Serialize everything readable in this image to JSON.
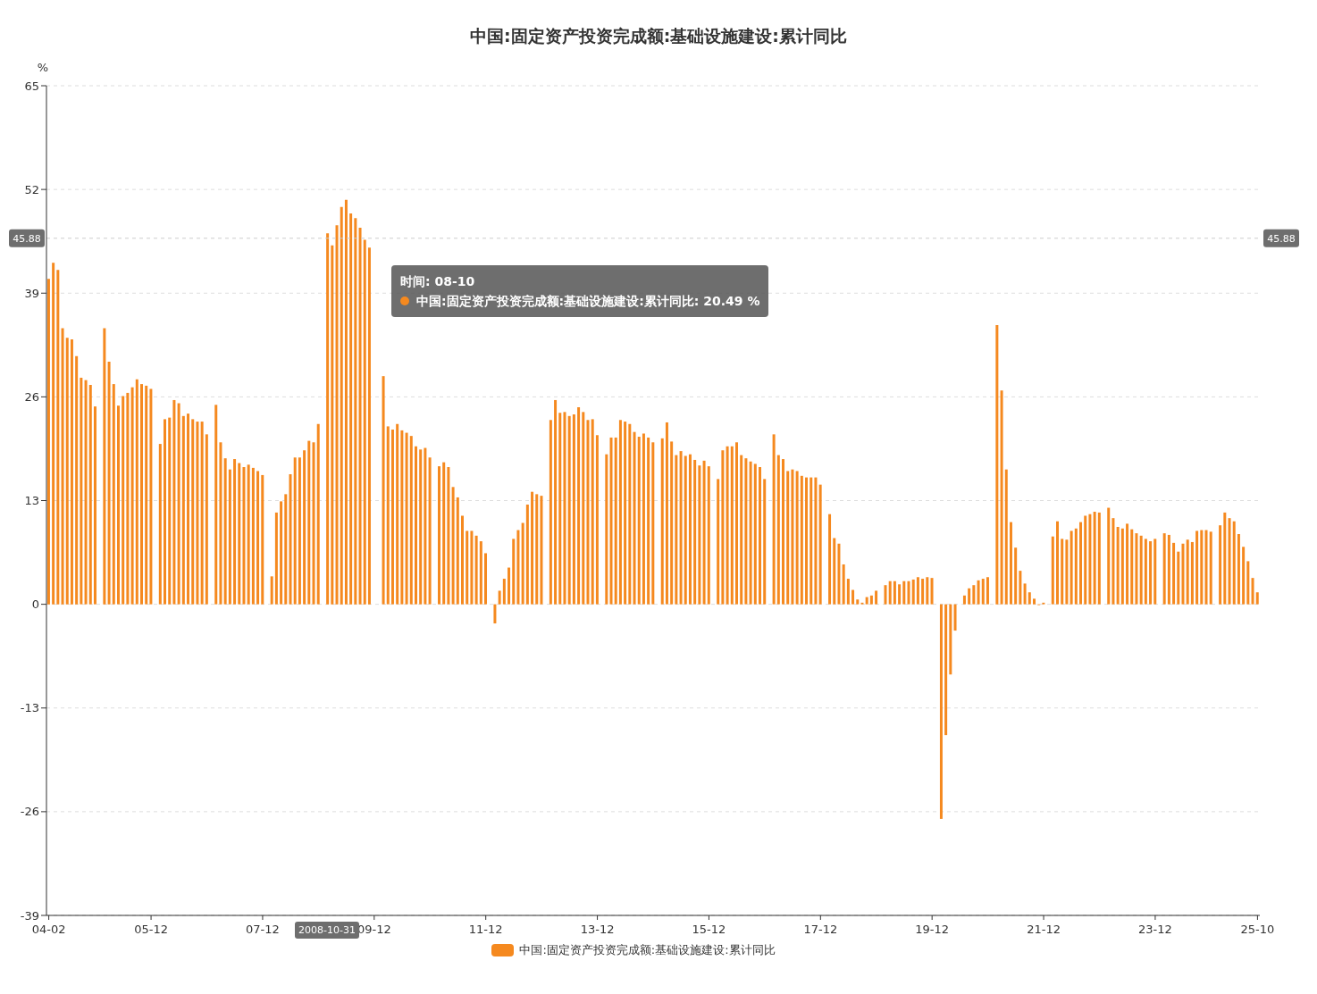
{
  "chart_data": {
    "type": "bar",
    "title": "中国:固定资产投资完成额:基础设施建设:累计同比",
    "ylabel": "%",
    "categories": [
      "04-02",
      null,
      null,
      null,
      null,
      null,
      null,
      null,
      null,
      null,
      null,
      null,
      null,
      null,
      null,
      null,
      null,
      null,
      null,
      null,
      null,
      null,
      "05-12",
      null,
      null,
      null,
      null,
      null,
      null,
      null,
      null,
      null,
      null,
      null,
      null,
      null,
      null,
      null,
      null,
      null,
      null,
      null,
      null,
      null,
      null,
      null,
      "07-12",
      null,
      null,
      null,
      null,
      null,
      null,
      null,
      null,
      null,
      null,
      null,
      null,
      null,
      null,
      null,
      null,
      null,
      null,
      null,
      null,
      null,
      null,
      null,
      "09-12",
      null,
      null,
      null,
      null,
      null,
      null,
      null,
      null,
      null,
      null,
      null,
      null,
      null,
      null,
      null,
      null,
      null,
      null,
      null,
      null,
      null,
      null,
      null,
      "11-12",
      null,
      null,
      null,
      null,
      null,
      null,
      null,
      null,
      null,
      null,
      null,
      null,
      null,
      null,
      null,
      null,
      null,
      null,
      null,
      null,
      null,
      null,
      null,
      "13-12",
      null,
      null,
      null,
      null,
      null,
      null,
      null,
      null,
      null,
      null,
      null,
      null,
      null,
      null,
      null,
      null,
      null,
      null,
      null,
      null,
      null,
      null,
      null,
      "15-12",
      null,
      null,
      null,
      null,
      null,
      null,
      null,
      null,
      null,
      null,
      null,
      null,
      null,
      null,
      null,
      null,
      null,
      null,
      null,
      null,
      null,
      null,
      null,
      "17-12",
      null,
      null,
      null,
      null,
      null,
      null,
      null,
      null,
      null,
      null,
      null,
      null,
      null,
      null,
      null,
      null,
      null,
      null,
      null,
      null,
      null,
      null,
      null,
      "19-12",
      null,
      null,
      null,
      null,
      null,
      null,
      null,
      null,
      null,
      null,
      null,
      null,
      null,
      null,
      null,
      null,
      null,
      null,
      null,
      null,
      null,
      null,
      null,
      "21-12",
      null,
      null,
      null,
      null,
      null,
      null,
      null,
      null,
      null,
      null,
      null,
      null,
      null,
      null,
      null,
      null,
      null,
      null,
      null,
      null,
      null,
      null,
      null,
      "23-12",
      null,
      null,
      null,
      null,
      null,
      null,
      null,
      null,
      null,
      null,
      null,
      null,
      null,
      null,
      null,
      null,
      null,
      null,
      null,
      null,
      null,
      "25-10"
    ],
    "series": [
      {
        "name": "中国:固定资产投资完成额:基础设施建设:累计同比",
        "color": "#f5891f",
        "values": [
          40.8,
          42.8,
          41.9,
          34.6,
          33.4,
          33.2,
          31.1,
          28.4,
          28.1,
          27.5,
          24.8,
          null,
          34.6,
          30.4,
          27.6,
          24.9,
          26.1,
          26.5,
          27.2,
          28.2,
          27.6,
          27.4,
          27.0,
          null,
          20.1,
          23.2,
          23.4,
          25.6,
          25.2,
          23.6,
          23.9,
          23.2,
          22.9,
          22.9,
          21.3,
          null,
          25.0,
          20.3,
          18.3,
          16.9,
          18.2,
          17.7,
          17.2,
          17.5,
          17.1,
          16.7,
          16.2,
          null,
          3.5,
          11.5,
          12.9,
          13.8,
          16.3,
          18.4,
          18.4,
          19.3,
          20.49,
          20.3,
          22.6,
          null,
          46.5,
          45.0,
          47.5,
          49.8,
          50.7,
          49.0,
          48.4,
          47.2,
          45.7,
          44.7,
          null,
          null,
          28.6,
          22.3,
          21.9,
          22.6,
          21.8,
          21.5,
          21.1,
          19.8,
          19.4,
          19.6,
          18.4,
          null,
          17.3,
          17.8,
          17.2,
          14.7,
          13.4,
          11.1,
          9.2,
          9.2,
          8.6,
          7.9,
          6.4,
          null,
          -2.4,
          1.7,
          3.2,
          4.6,
          8.2,
          9.3,
          10.2,
          12.5,
          14.1,
          13.8,
          13.6,
          null,
          23.1,
          25.6,
          24.0,
          24.1,
          23.6,
          23.8,
          24.7,
          24.1,
          23.1,
          23.2,
          21.2,
          null,
          18.8,
          20.9,
          20.9,
          23.1,
          22.9,
          22.6,
          21.6,
          21.0,
          21.4,
          20.9,
          20.3,
          null,
          20.8,
          22.8,
          20.4,
          18.7,
          19.2,
          18.6,
          18.8,
          18.1,
          17.4,
          18.0,
          17.3,
          null,
          15.7,
          19.3,
          19.8,
          19.8,
          20.3,
          18.7,
          18.3,
          17.9,
          17.6,
          17.2,
          15.7,
          null,
          21.3,
          18.7,
          18.2,
          16.7,
          16.9,
          16.7,
          16.1,
          15.9,
          15.9,
          15.9,
          15.0,
          null,
          11.3,
          8.3,
          7.6,
          5.0,
          3.2,
          1.8,
          0.6,
          0.2,
          0.9,
          1.1,
          1.7,
          null,
          2.4,
          2.9,
          2.9,
          2.5,
          2.9,
          2.9,
          3.1,
          3.4,
          3.2,
          3.4,
          3.3,
          null,
          -26.9,
          -16.4,
          -8.8,
          -3.3,
          null,
          1.1,
          2.0,
          2.4,
          3.0,
          3.2,
          3.4,
          null,
          35.0,
          26.8,
          16.9,
          10.3,
          7.1,
          4.2,
          2.6,
          1.5,
          0.7,
          -0.1,
          0.2,
          null,
          8.5,
          10.4,
          8.2,
          8.1,
          9.2,
          9.5,
          10.3,
          11.1,
          11.3,
          11.6,
          11.5,
          null,
          12.1,
          10.8,
          9.7,
          9.5,
          10.1,
          9.4,
          8.9,
          8.6,
          8.2,
          7.9,
          8.2,
          null,
          8.9,
          8.7,
          7.7,
          6.6,
          7.6,
          8.1,
          7.8,
          9.2,
          9.3,
          9.3,
          9.1,
          null,
          9.9,
          11.5,
          10.8,
          10.4,
          8.8,
          7.2,
          5.4,
          3.3,
          1.5
        ]
      }
    ],
    "ylim": [
      -39,
      65
    ],
    "yticks": [
      -39,
      -26,
      -13,
      0,
      13,
      26,
      39,
      52,
      65
    ],
    "grid": "y",
    "legend": "bottom",
    "ref_lines": [
      {
        "axis": "y",
        "value": 45.88,
        "label": "45.88",
        "color": "#cccccc",
        "line_style": "dashed"
      }
    ],
    "annotations": [
      "2008-10-31",
      "时间: 08-10",
      "中国:固定资产投资完成额:基础设施建设:累计同比: 20.49  %"
    ]
  }
}
